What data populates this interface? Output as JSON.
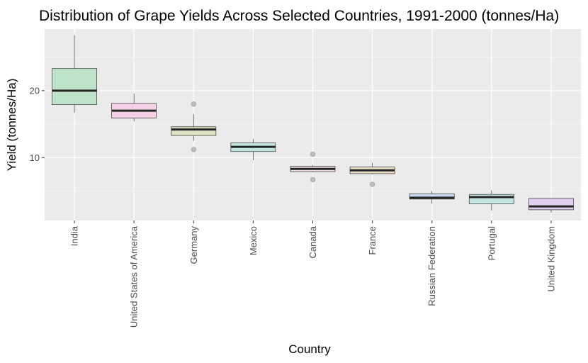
{
  "chart_data": {
    "type": "boxplot",
    "title": "Distribution of Grape Yields Across Selected Countries, 1991-2000 (tonnes/Ha)",
    "xlabel": "Country",
    "ylabel": "Yield (tonnes/Ha)",
    "ylim": [
      0.6,
      29.2
    ],
    "yticks": [
      10,
      20
    ],
    "grid": true,
    "background": "#ebebeb",
    "categories": [
      "India",
      "United States of America",
      "Germany",
      "Mexico",
      "Canada",
      "France",
      "Russian Federation",
      "Portugal",
      "United Kingdom"
    ],
    "boxes": [
      {
        "category": "India",
        "min": 16.7,
        "q1": 17.9,
        "median": 20.0,
        "q3": 23.3,
        "max": 28.3,
        "outliers": [],
        "fill": "#bfe3c9"
      },
      {
        "category": "United States of America",
        "min": 15.4,
        "q1": 15.9,
        "median": 17.0,
        "q3": 18.1,
        "max": 19.6,
        "outliers": [],
        "fill": "#f3d0e6"
      },
      {
        "category": "Germany",
        "min": 12.5,
        "q1": 13.3,
        "median": 14.2,
        "q3": 14.6,
        "max": 16.5,
        "outliers": [
          18.0,
          11.2
        ],
        "fill": "#dde2c0"
      },
      {
        "category": "Mexico",
        "min": 9.6,
        "q1": 10.9,
        "median": 11.6,
        "q3": 12.2,
        "max": 12.8,
        "outliers": [],
        "fill": "#c3e5e0"
      },
      {
        "category": "Canada",
        "min": 7.8,
        "q1": 7.9,
        "median": 8.3,
        "q3": 8.7,
        "max": 8.9,
        "outliers": [
          10.5,
          6.7
        ],
        "fill": "#ecd9dd"
      },
      {
        "category": "France",
        "min": 7.5,
        "q1": 7.6,
        "median": 8.1,
        "q3": 8.6,
        "max": 9.2,
        "outliers": [
          6.0
        ],
        "fill": "#ecdfc6"
      },
      {
        "category": "Russian Federation",
        "min": 3.1,
        "q1": 3.8,
        "median": 4.0,
        "q3": 4.6,
        "max": 5.0,
        "outliers": [],
        "fill": "#c9daf1"
      },
      {
        "category": "Portugal",
        "min": 2.1,
        "q1": 3.1,
        "median": 4.1,
        "q3": 4.5,
        "max": 5.1,
        "outliers": [],
        "fill": "#c4e3e3"
      },
      {
        "category": "United Kingdom",
        "min": 1.8,
        "q1": 2.2,
        "median": 2.7,
        "q3": 3.9,
        "max": 3.9,
        "outliers": [],
        "fill": "#e3cfee"
      }
    ]
  }
}
